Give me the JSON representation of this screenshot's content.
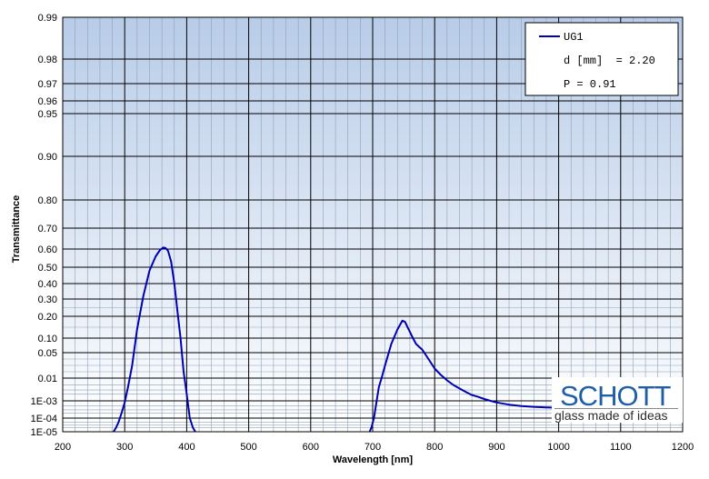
{
  "chart_data": {
    "type": "line",
    "xlabel": "Wavelength [nm]",
    "ylabel": "Transmittance",
    "xlim": [
      200,
      1200
    ],
    "x_ticks": [
      "200",
      "300",
      "400",
      "500",
      "600",
      "700",
      "800",
      "900",
      "1000",
      "1100",
      "1200"
    ],
    "y_ticks": [
      "1E-05",
      "1E-04",
      "1E-03",
      "0.01",
      "0.05",
      "0.10",
      "0.20",
      "0.30",
      "0.40",
      "0.50",
      "0.60",
      "0.70",
      "0.80",
      "0.90",
      "0.95",
      "0.96",
      "0.97",
      "0.98",
      "0.99"
    ],
    "y_scale": "diabatic (non-linear transmittance scale)",
    "grid": true,
    "legend_position": "top-right",
    "legend": {
      "series_name": "UG1",
      "lines": [
        "d [mm]  = 2.20",
        "P = 0.91"
      ]
    },
    "series": [
      {
        "name": "UG1",
        "color": "#0000b4",
        "x": [
          282,
          286,
          290,
          295,
          300,
          306,
          312,
          320,
          330,
          340,
          350,
          357,
          362,
          366,
          370,
          375,
          380,
          385,
          390,
          395,
          400,
          405,
          410,
          414,
          695,
          698,
          702,
          706,
          710,
          715,
          720,
          730,
          740,
          748,
          752,
          758,
          765,
          770,
          775,
          780,
          790,
          800,
          810,
          820,
          830,
          840,
          850,
          860,
          870,
          880,
          890,
          900,
          920,
          940,
          960,
          980,
          1000,
          1020,
          1050,
          1100,
          1150,
          1180,
          1190,
          1200
        ],
        "y": [
          "1E-05",
          "2E-05",
          "5E-05",
          "2E-04",
          "8E-04",
          "0.005",
          "0.03",
          "0.14",
          "0.32",
          "0.48",
          "0.56",
          "0.595",
          "0.607",
          "0.605",
          "0.59",
          "0.53",
          "0.40",
          "0.23",
          "0.10",
          "0.02",
          "0.002",
          "1E-04",
          "2E-05",
          "1E-05",
          "1E-05",
          "2E-05",
          "1E-04",
          "8E-04",
          "0.004",
          "0.012",
          "0.03",
          "0.08",
          "0.14",
          "0.18",
          "0.175",
          "0.14",
          "0.10",
          "0.08",
          "0.07",
          "0.06",
          "0.04",
          "0.025",
          "0.015",
          "0.008",
          "0.005",
          "0.0035",
          "0.0025",
          "0.0018",
          "0.0015",
          "0.0012",
          "0.001",
          "8E-04",
          "6E-04",
          "5E-04",
          "4.5E-04",
          "4.2E-04",
          "4E-04",
          "4E-04",
          "4E-04",
          "4E-04",
          "4E-04",
          "4E-04",
          "4E-04",
          "4E-04"
        ]
      }
    ]
  },
  "logo": {
    "brand": "SCHOTT",
    "tagline": "glass made of ideas"
  }
}
